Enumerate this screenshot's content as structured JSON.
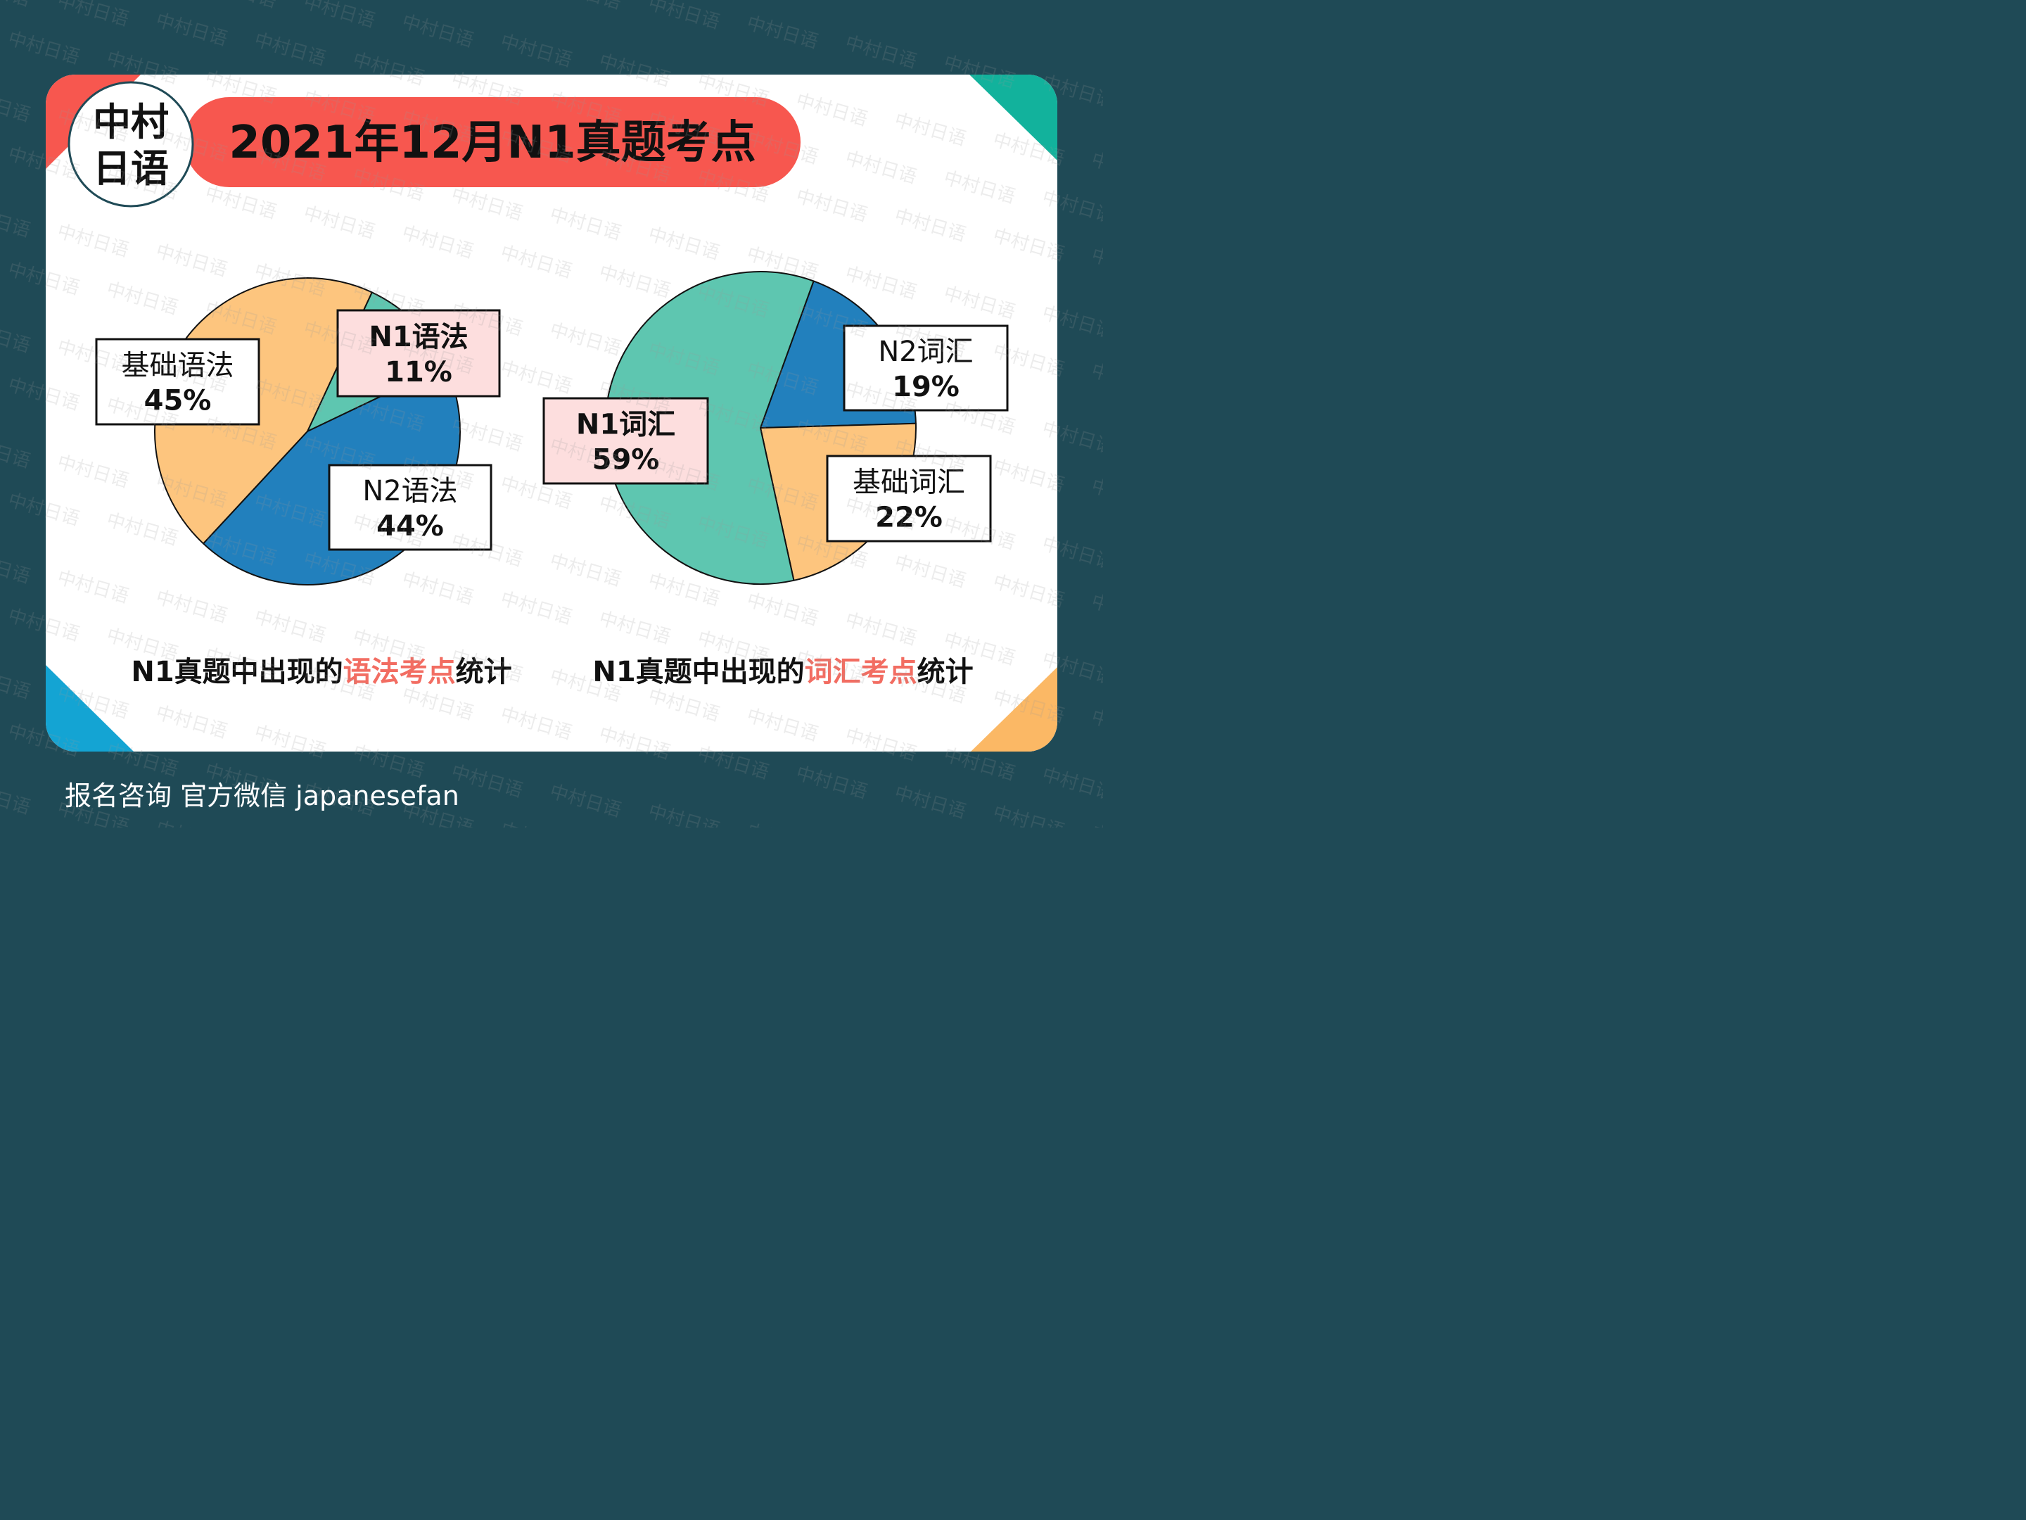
{
  "header": {
    "title": "2021年12月N1真题考点",
    "logo": {
      "line1": "中村",
      "line2": "日语"
    }
  },
  "watermark": "中村日语",
  "colors": {
    "background": "#1f4a56",
    "card": "#ffffff",
    "accent_red": "#f7574f",
    "teal": "#5ec6b0",
    "blue": "#2280bd",
    "orange": "#fdc57e",
    "corner_teal": "#12b29c",
    "corner_blue": "#14a4d3",
    "corner_orange": "#fbb865",
    "highlight": "#f26d62"
  },
  "chart_data": [
    {
      "type": "pie",
      "slices": [
        {
          "label": "N1语法",
          "value": 11,
          "pct": "11%",
          "color": "#5ec6b0",
          "highlight": true
        },
        {
          "label": "N2语法",
          "value": 44,
          "pct": "44%",
          "color": "#2280bd",
          "highlight": false
        },
        {
          "label": "基础语法",
          "value": 45,
          "pct": "45%",
          "color": "#fdc57e",
          "highlight": false
        }
      ],
      "caption": {
        "prefix": "N1真题中出现的",
        "highlight": "语法考点",
        "suffix": "统计"
      }
    },
    {
      "type": "pie",
      "slices": [
        {
          "label": "N2词汇",
          "value": 19,
          "pct": "19%",
          "color": "#2280bd",
          "highlight": false
        },
        {
          "label": "基础词汇",
          "value": 22,
          "pct": "22%",
          "color": "#fdc57e",
          "highlight": false
        },
        {
          "label": "N1词汇",
          "value": 59,
          "pct": "59%",
          "color": "#5ec6b0",
          "highlight": true
        }
      ],
      "caption": {
        "prefix": "N1真题中出现的",
        "highlight": "词汇考点",
        "suffix": "统计"
      }
    }
  ],
  "footer": {
    "text": "报名咨询 官方微信 japanesefan"
  }
}
